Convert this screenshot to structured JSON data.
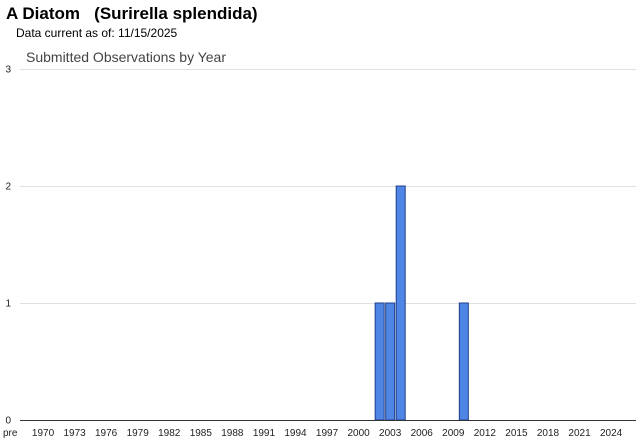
{
  "header": {
    "title": "A Diatom   (Surirella splendida)",
    "subtitle": "Data current as of: 11/15/2025"
  },
  "chart_data": {
    "type": "bar",
    "title": "Submitted Observations by Year",
    "xlabel": "",
    "ylabel": "",
    "ylim": [
      0,
      3
    ],
    "yticks": [
      0,
      1,
      2,
      3
    ],
    "grid": true,
    "legend": "none",
    "categories": [
      "pre 1970",
      "1970",
      "1971",
      "1972",
      "1973",
      "1974",
      "1975",
      "1976",
      "1977",
      "1978",
      "1979",
      "1980",
      "1981",
      "1982",
      "1983",
      "1984",
      "1985",
      "1986",
      "1987",
      "1988",
      "1989",
      "1990",
      "1991",
      "1992",
      "1993",
      "1994",
      "1995",
      "1996",
      "1997",
      "1998",
      "1999",
      "2000",
      "2001",
      "2002",
      "2003",
      "2004",
      "2005",
      "2006",
      "2007",
      "2008",
      "2009",
      "2010",
      "2011",
      "2012",
      "2013",
      "2014",
      "2015",
      "2016",
      "2017",
      "2018",
      "2019",
      "2020",
      "2021",
      "2022",
      "2023",
      "2024",
      "2025"
    ],
    "tick_labels": [
      "pre",
      "1970",
      "1973",
      "1976",
      "1979",
      "1982",
      "1985",
      "1988",
      "1991",
      "1994",
      "1997",
      "2000",
      "2003",
      "2006",
      "2009",
      "2012",
      "2015",
      "2018",
      "2021",
      "2024"
    ],
    "values": [
      0,
      0,
      0,
      0,
      0,
      0,
      0,
      0,
      0,
      0,
      0,
      0,
      0,
      0,
      0,
      0,
      0,
      0,
      0,
      0,
      0,
      0,
      0,
      0,
      0,
      0,
      0,
      0,
      0,
      0,
      0,
      0,
      0,
      1,
      1,
      2,
      0,
      0,
      0,
      0,
      0,
      1,
      0,
      0,
      0,
      0,
      0,
      0,
      0,
      0,
      0,
      0,
      0,
      0,
      0,
      0,
      0
    ],
    "colors": {
      "bar_fill": "#4f86e6",
      "bar_stroke": "#1f3d8a",
      "grid": "#e0e0e0",
      "axis": "#333333"
    }
  }
}
